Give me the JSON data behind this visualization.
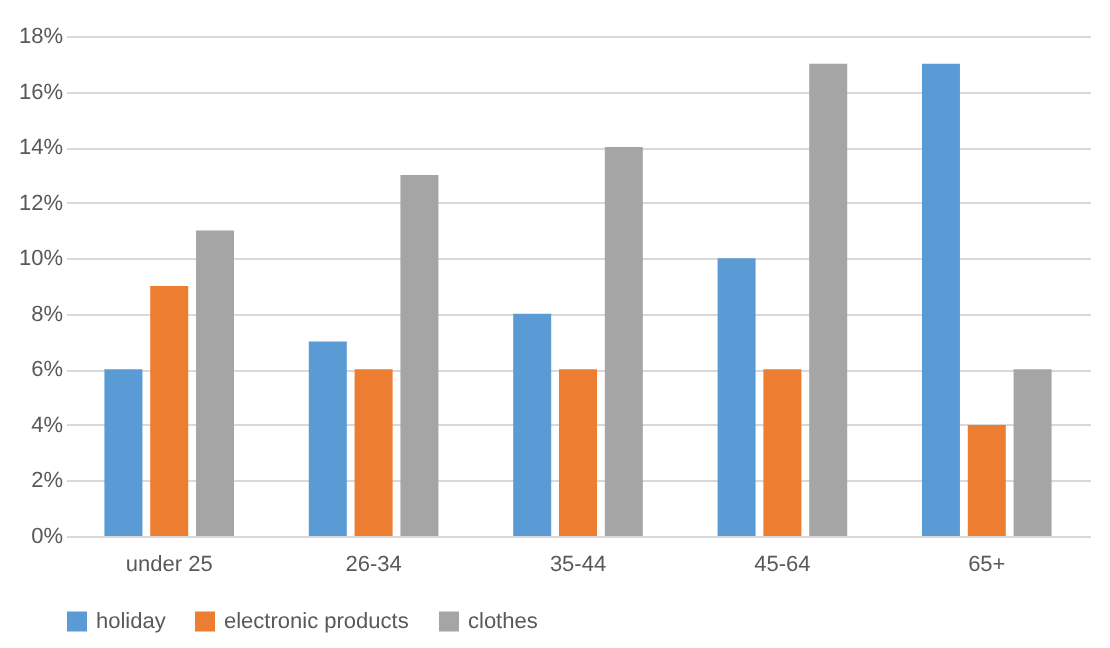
{
  "chart_data": {
    "type": "bar",
    "categories": [
      "under 25",
      "26-34",
      "35-44",
      "45-64",
      "65+"
    ],
    "series": [
      {
        "name": "holiday",
        "color": "#5b9bd5",
        "values": [
          6,
          7,
          8,
          10,
          17
        ]
      },
      {
        "name": "electronic products",
        "color": "#ed7d31",
        "values": [
          9,
          6,
          6,
          6,
          4
        ]
      },
      {
        "name": "clothes",
        "color": "#a5a5a5",
        "values": [
          11,
          13,
          14,
          17,
          6
        ]
      }
    ],
    "ylim": [
      0,
      18
    ],
    "yticks": [
      {
        "value": 0,
        "label": "0%"
      },
      {
        "value": 2,
        "label": "2%"
      },
      {
        "value": 4,
        "label": "4%"
      },
      {
        "value": 6,
        "label": "6%"
      },
      {
        "value": 8,
        "label": "8%"
      },
      {
        "value": 10,
        "label": "10%"
      },
      {
        "value": 12,
        "label": "12%"
      },
      {
        "value": 14,
        "label": "14%"
      },
      {
        "value": 16,
        "label": "16%"
      },
      {
        "value": 18,
        "label": "18%"
      }
    ],
    "grid": "y",
    "legend": "bottom"
  }
}
